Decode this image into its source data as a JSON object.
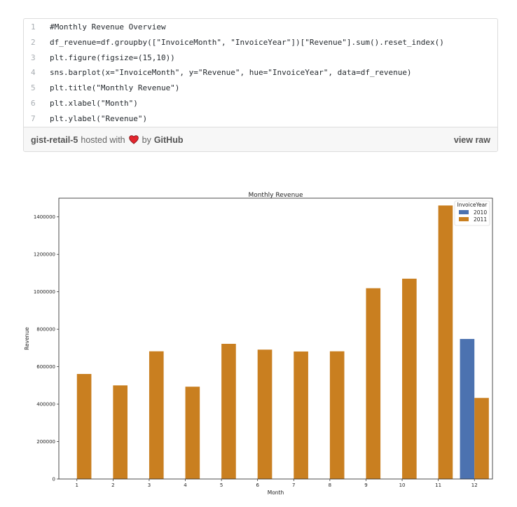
{
  "gist": {
    "lines": [
      {
        "num": "1",
        "code": "#Monthly Revenue Overview"
      },
      {
        "num": "2",
        "code": "df_revenue=df.groupby([\"InvoiceMonth\", \"InvoiceYear\"])[\"Revenue\"].sum().reset_index()"
      },
      {
        "num": "3",
        "code": "plt.figure(figsize=(15,10))"
      },
      {
        "num": "4",
        "code": "sns.barplot(x=\"InvoiceMonth\", y=\"Revenue\", hue=\"InvoiceYear\", data=df_revenue)"
      },
      {
        "num": "5",
        "code": "plt.title(\"Monthly Revenue\")"
      },
      {
        "num": "6",
        "code": "plt.xlabel(\"Month\")"
      },
      {
        "num": "7",
        "code": "plt.ylabel(\"Revenue\")"
      }
    ],
    "footer": {
      "gist_name": "gist-retail-5",
      "hosted_with": "hosted with",
      "by": "by",
      "github": "GitHub",
      "view_raw": "view raw",
      "heart_color": "#e3262e"
    }
  },
  "chart_data": {
    "type": "bar",
    "title": "Monthly Revenue",
    "xlabel": "Month",
    "ylabel": "Revenue",
    "categories": [
      "1",
      "2",
      "3",
      "4",
      "5",
      "6",
      "7",
      "8",
      "9",
      "10",
      "11",
      "12"
    ],
    "series": [
      {
        "name": "2010",
        "color": "#4c72b0",
        "values": [
          null,
          null,
          null,
          null,
          null,
          null,
          null,
          null,
          null,
          null,
          null,
          748000
        ]
      },
      {
        "name": "2011",
        "color": "#c97f20",
        "values": [
          561000,
          500000,
          682000,
          493000,
          722000,
          691000,
          681000,
          682000,
          1019000,
          1070000,
          1461000,
          433000
        ]
      }
    ],
    "ylim": [
      0,
      1500000
    ],
    "yticks": [
      {
        "value": 0,
        "label": "0"
      },
      {
        "value": 200000,
        "label": "200000"
      },
      {
        "value": 400000,
        "label": "400000"
      },
      {
        "value": 600000,
        "label": "600000"
      },
      {
        "value": 800000,
        "label": "800000"
      },
      {
        "value": 1000000,
        "label": "1000000"
      },
      {
        "value": 1200000,
        "label": "1200000"
      },
      {
        "value": 1400000,
        "label": "1400000"
      }
    ],
    "legend": {
      "title": "InvoiceYear",
      "placement": "top-right"
    },
    "grid": false
  }
}
